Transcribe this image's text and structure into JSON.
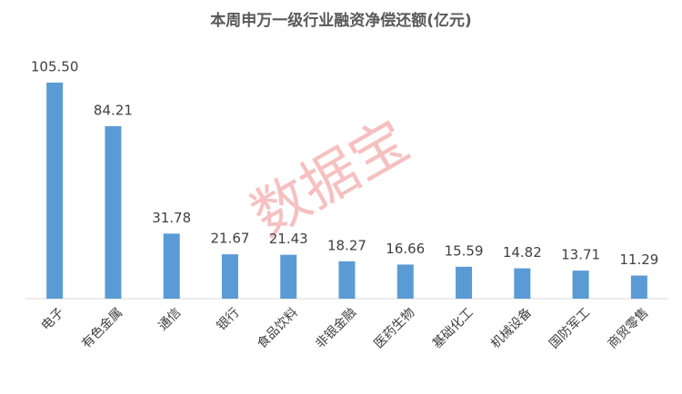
{
  "chart_data": {
    "type": "bar",
    "title": "本周申万一级行业融资净偿还额(亿元)",
    "watermark": "数据宝",
    "categories": [
      "电子",
      "有色金属",
      "通信",
      "银行",
      "食品饮料",
      "非银金融",
      "医药生物",
      "基础化工",
      "机械设备",
      "国防军工",
      "商贸零售"
    ],
    "values": [
      105.5,
      84.21,
      31.78,
      21.67,
      21.43,
      18.27,
      16.66,
      15.59,
      14.82,
      13.71,
      11.29
    ],
    "value_labels": [
      "105.50",
      "84.21",
      "31.78",
      "21.67",
      "21.43",
      "18.27",
      "16.66",
      "15.59",
      "14.82",
      "13.71",
      "11.29"
    ],
    "color": "#5b9bd5"
  }
}
